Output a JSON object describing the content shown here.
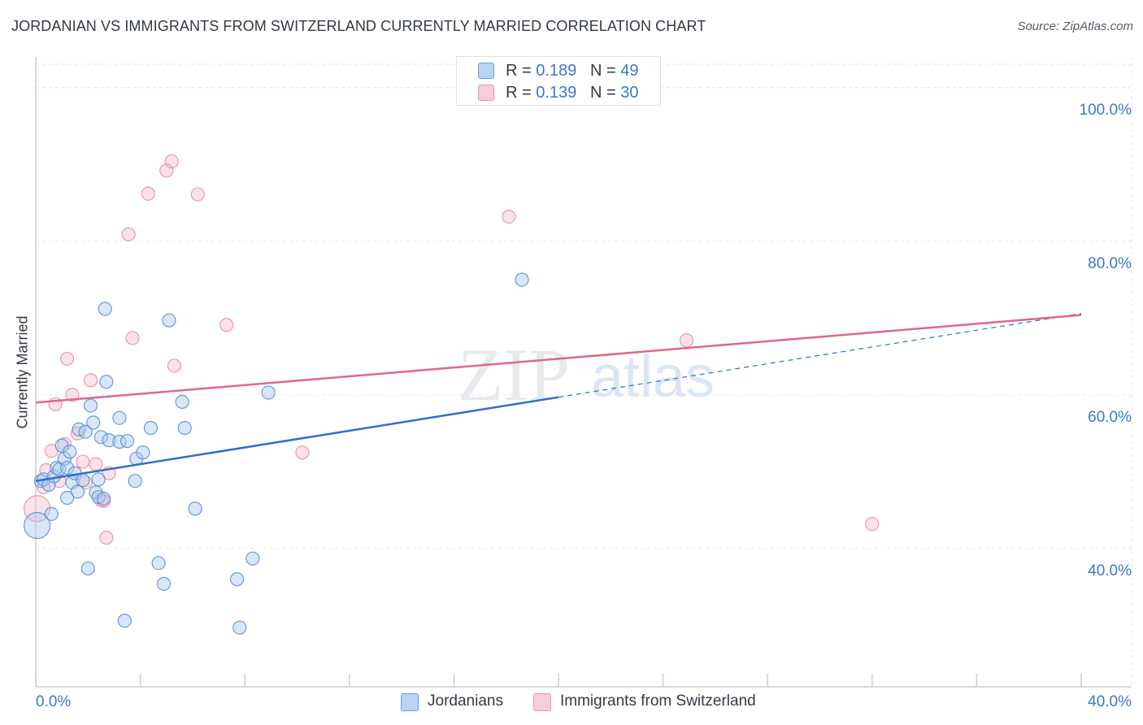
{
  "title": "JORDANIAN VS IMMIGRANTS FROM SWITZERLAND CURRENTLY MARRIED CORRELATION CHART",
  "source": "Source: ZipAtlas.com",
  "watermark": {
    "zip": "ZIP",
    "atlas": "atlas"
  },
  "legend_stats": [
    {
      "r_label": "R = ",
      "r_value": "0.189",
      "n_label": "N = ",
      "n_value": "49"
    },
    {
      "r_label": "R = ",
      "r_value": "0.139",
      "n_label": "N = ",
      "n_value": "30"
    }
  ],
  "chart_data": {
    "type": "scatter",
    "title": "JORDANIAN VS IMMIGRANTS FROM SWITZERLAND CURRENTLY MARRIED CORRELATION CHART",
    "xlabel": "",
    "ylabel": "Currently Married",
    "xlim": [
      0,
      40
    ],
    "ylim": [
      22,
      104
    ],
    "x_tick_labels": [
      {
        "value": 0,
        "label": "0.0%"
      },
      {
        "value": 40,
        "label": "40.0%"
      }
    ],
    "x_minor_ticks": [
      0,
      4,
      8,
      12,
      16,
      20,
      24,
      28,
      32,
      36,
      40
    ],
    "y_tick_labels": [
      {
        "value": 40,
        "label": "40.0%"
      },
      {
        "value": 60,
        "label": "60.0%"
      },
      {
        "value": 80,
        "label": "80.0%"
      },
      {
        "value": 100,
        "label": "100.0%"
      }
    ],
    "grid": true,
    "legend": "bottom-center",
    "colors": {
      "jordanians_fill": "#aac8f0",
      "jordanians_stroke": "#5b8fd6",
      "jordanians_line": "#2d6fcc",
      "swiss_fill": "#f6bfd0",
      "swiss_stroke": "#e38fab",
      "swiss_line": "#e0668e",
      "grid": "#e3e6ea",
      "axis_text": "#3b78c9"
    },
    "series": [
      {
        "name": "Jordanians",
        "R": 0.189,
        "N": 49,
        "trend": {
          "x0": 0,
          "y0": 48.8,
          "x1": 20,
          "y1": 59.7,
          "dashed_x1": 40,
          "dashed_y1": 70.6
        },
        "points": [
          {
            "x": 0.05,
            "y": 43.0,
            "big": true
          },
          {
            "x": 0.2,
            "y": 48.8
          },
          {
            "x": 0.3,
            "y": 49.0
          },
          {
            "x": 0.5,
            "y": 48.3
          },
          {
            "x": 0.6,
            "y": 44.5
          },
          {
            "x": 0.7,
            "y": 49.4
          },
          {
            "x": 0.8,
            "y": 50.5
          },
          {
            "x": 0.9,
            "y": 50.3
          },
          {
            "x": 1.0,
            "y": 53.4
          },
          {
            "x": 1.1,
            "y": 51.7
          },
          {
            "x": 1.2,
            "y": 50.5
          },
          {
            "x": 1.3,
            "y": 52.6
          },
          {
            "x": 1.4,
            "y": 48.6
          },
          {
            "x": 1.5,
            "y": 49.8
          },
          {
            "x": 1.6,
            "y": 47.4
          },
          {
            "x": 1.65,
            "y": 55.5
          },
          {
            "x": 1.8,
            "y": 48.9
          },
          {
            "x": 1.9,
            "y": 55.2
          },
          {
            "x": 2.0,
            "y": 37.4
          },
          {
            "x": 2.1,
            "y": 58.6
          },
          {
            "x": 2.2,
            "y": 56.4
          },
          {
            "x": 2.3,
            "y": 47.3
          },
          {
            "x": 2.4,
            "y": 46.7
          },
          {
            "x": 2.5,
            "y": 54.5
          },
          {
            "x": 2.6,
            "y": 46.5
          },
          {
            "x": 2.65,
            "y": 71.2
          },
          {
            "x": 2.7,
            "y": 61.7
          },
          {
            "x": 2.8,
            "y": 54.1
          },
          {
            "x": 3.2,
            "y": 57.0
          },
          {
            "x": 3.2,
            "y": 53.9
          },
          {
            "x": 3.4,
            "y": 30.6
          },
          {
            "x": 3.5,
            "y": 54.0
          },
          {
            "x": 3.8,
            "y": 48.8
          },
          {
            "x": 3.85,
            "y": 51.7
          },
          {
            "x": 4.1,
            "y": 52.5
          },
          {
            "x": 4.4,
            "y": 55.7
          },
          {
            "x": 4.7,
            "y": 38.1
          },
          {
            "x": 4.9,
            "y": 35.4
          },
          {
            "x": 5.1,
            "y": 69.7
          },
          {
            "x": 5.6,
            "y": 59.1
          },
          {
            "x": 5.7,
            "y": 55.7
          },
          {
            "x": 6.1,
            "y": 45.2
          },
          {
            "x": 7.7,
            "y": 36.0
          },
          {
            "x": 7.8,
            "y": 29.7
          },
          {
            "x": 8.3,
            "y": 38.7
          },
          {
            "x": 8.9,
            "y": 60.3
          },
          {
            "x": 18.6,
            "y": 75.0
          },
          {
            "x": 2.4,
            "y": 49.0
          },
          {
            "x": 1.2,
            "y": 46.6
          }
        ]
      },
      {
        "name": "Immigrants from Switzerland",
        "R": 0.139,
        "N": 30,
        "trend": {
          "x0": 0,
          "y0": 59.0,
          "x1": 40,
          "y1": 70.4
        },
        "points": [
          {
            "x": 0.05,
            "y": 45.2,
            "big": true
          },
          {
            "x": 0.3,
            "y": 48.0
          },
          {
            "x": 0.4,
            "y": 50.2
          },
          {
            "x": 0.6,
            "y": 52.7
          },
          {
            "x": 0.75,
            "y": 58.8
          },
          {
            "x": 0.9,
            "y": 48.8
          },
          {
            "x": 1.1,
            "y": 53.6
          },
          {
            "x": 1.2,
            "y": 64.7
          },
          {
            "x": 1.4,
            "y": 60.0
          },
          {
            "x": 1.6,
            "y": 55.0
          },
          {
            "x": 1.8,
            "y": 51.3
          },
          {
            "x": 1.9,
            "y": 48.6
          },
          {
            "x": 2.1,
            "y": 61.9
          },
          {
            "x": 2.3,
            "y": 51.0
          },
          {
            "x": 2.5,
            "y": 46.3
          },
          {
            "x": 2.6,
            "y": 46.2
          },
          {
            "x": 2.7,
            "y": 41.4
          },
          {
            "x": 2.8,
            "y": 49.8
          },
          {
            "x": 3.55,
            "y": 80.9
          },
          {
            "x": 3.7,
            "y": 67.4
          },
          {
            "x": 4.3,
            "y": 86.2
          },
          {
            "x": 5.0,
            "y": 89.2
          },
          {
            "x": 5.2,
            "y": 90.4
          },
          {
            "x": 5.3,
            "y": 63.8
          },
          {
            "x": 6.2,
            "y": 86.1
          },
          {
            "x": 7.3,
            "y": 69.1
          },
          {
            "x": 10.2,
            "y": 52.5
          },
          {
            "x": 18.1,
            "y": 83.2
          },
          {
            "x": 24.9,
            "y": 67.1
          },
          {
            "x": 32.0,
            "y": 43.2
          }
        ]
      }
    ]
  },
  "legend_bottom": [
    {
      "label": "Jordanians"
    },
    {
      "label": "Immigrants from Switzerland"
    }
  ]
}
